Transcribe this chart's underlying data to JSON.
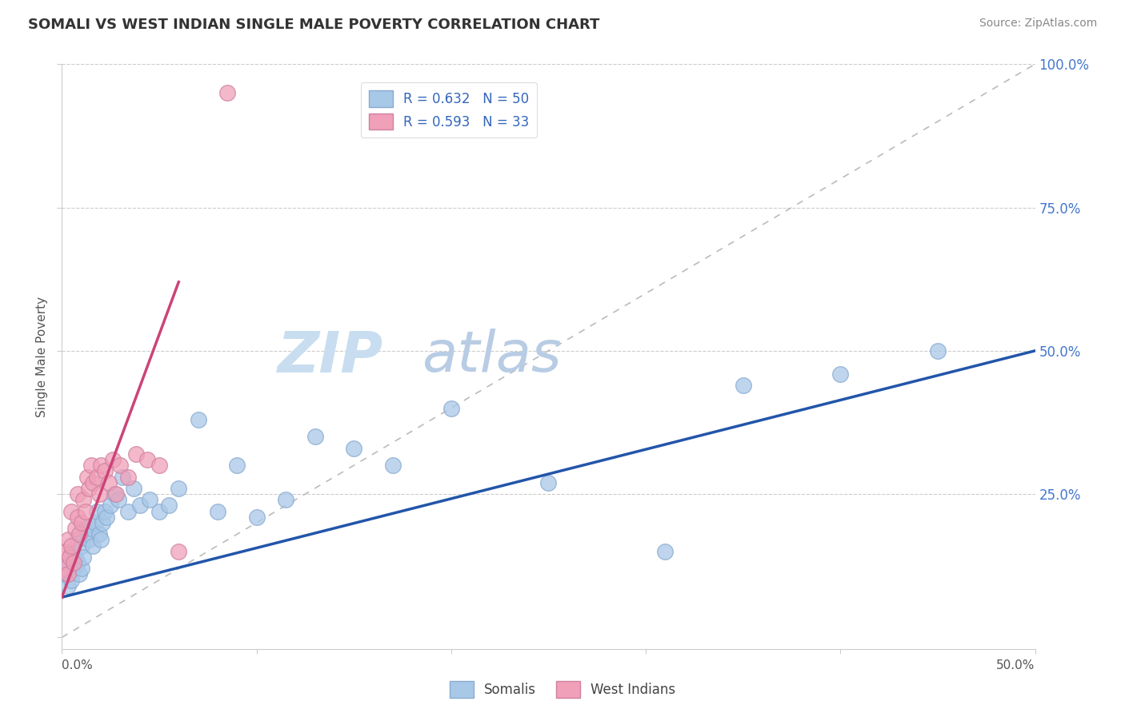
{
  "title": "SOMALI VS WEST INDIAN SINGLE MALE POVERTY CORRELATION CHART",
  "source": "Source: ZipAtlas.com",
  "ylabel": "Single Male Poverty",
  "xlim": [
    0.0,
    0.5
  ],
  "ylim": [
    -0.02,
    1.0
  ],
  "somali_color": "#a8c8e8",
  "west_indian_color": "#f0a0b8",
  "somali_edge_color": "#88aad0",
  "west_indian_edge_color": "#d080a0",
  "somali_line_color": "#2255aa",
  "west_indian_line_color": "#cc4477",
  "diagonal_color": "#bbbbbb",
  "legend_somali_label": "R = 0.632   N = 50",
  "legend_west_indian_label": "R = 0.593   N = 33",
  "watermark_zip_color": "#c8ddf0",
  "watermark_atlas_color": "#b8cce4",
  "background_color": "#ffffff",
  "somali_x": [
    0.002,
    0.003,
    0.004,
    0.005,
    0.005,
    0.006,
    0.007,
    0.008,
    0.008,
    0.009,
    0.01,
    0.01,
    0.011,
    0.012,
    0.013,
    0.014,
    0.015,
    0.016,
    0.017,
    0.018,
    0.019,
    0.02,
    0.021,
    0.022,
    0.023,
    0.025,
    0.027,
    0.029,
    0.031,
    0.034,
    0.037,
    0.04,
    0.045,
    0.05,
    0.055,
    0.06,
    0.07,
    0.08,
    0.09,
    0.1,
    0.115,
    0.13,
    0.15,
    0.17,
    0.2,
    0.25,
    0.31,
    0.35,
    0.4,
    0.45
  ],
  "somali_y": [
    0.11,
    0.09,
    0.13,
    0.1,
    0.15,
    0.12,
    0.14,
    0.13,
    0.17,
    0.11,
    0.16,
    0.12,
    0.14,
    0.19,
    0.18,
    0.17,
    0.19,
    0.16,
    0.2,
    0.22,
    0.18,
    0.17,
    0.2,
    0.22,
    0.21,
    0.23,
    0.25,
    0.24,
    0.28,
    0.22,
    0.26,
    0.23,
    0.24,
    0.22,
    0.23,
    0.26,
    0.38,
    0.22,
    0.3,
    0.21,
    0.24,
    0.35,
    0.33,
    0.3,
    0.4,
    0.27,
    0.15,
    0.44,
    0.46,
    0.5
  ],
  "west_indian_x": [
    0.001,
    0.002,
    0.003,
    0.003,
    0.004,
    0.005,
    0.005,
    0.006,
    0.007,
    0.008,
    0.008,
    0.009,
    0.01,
    0.011,
    0.012,
    0.013,
    0.014,
    0.015,
    0.016,
    0.018,
    0.019,
    0.02,
    0.022,
    0.024,
    0.026,
    0.028,
    0.03,
    0.034,
    0.038,
    0.044,
    0.05,
    0.06,
    0.085
  ],
  "west_indian_y": [
    0.12,
    0.15,
    0.11,
    0.17,
    0.14,
    0.16,
    0.22,
    0.13,
    0.19,
    0.21,
    0.25,
    0.18,
    0.2,
    0.24,
    0.22,
    0.28,
    0.26,
    0.3,
    0.27,
    0.28,
    0.25,
    0.3,
    0.29,
    0.27,
    0.31,
    0.25,
    0.3,
    0.28,
    0.32,
    0.31,
    0.3,
    0.15,
    0.95
  ],
  "somali_line_x": [
    0.0,
    0.5
  ],
  "somali_line_y": [
    0.07,
    0.5
  ],
  "west_indian_line_x": [
    0.0,
    0.06
  ],
  "west_indian_line_y": [
    0.07,
    0.62
  ]
}
